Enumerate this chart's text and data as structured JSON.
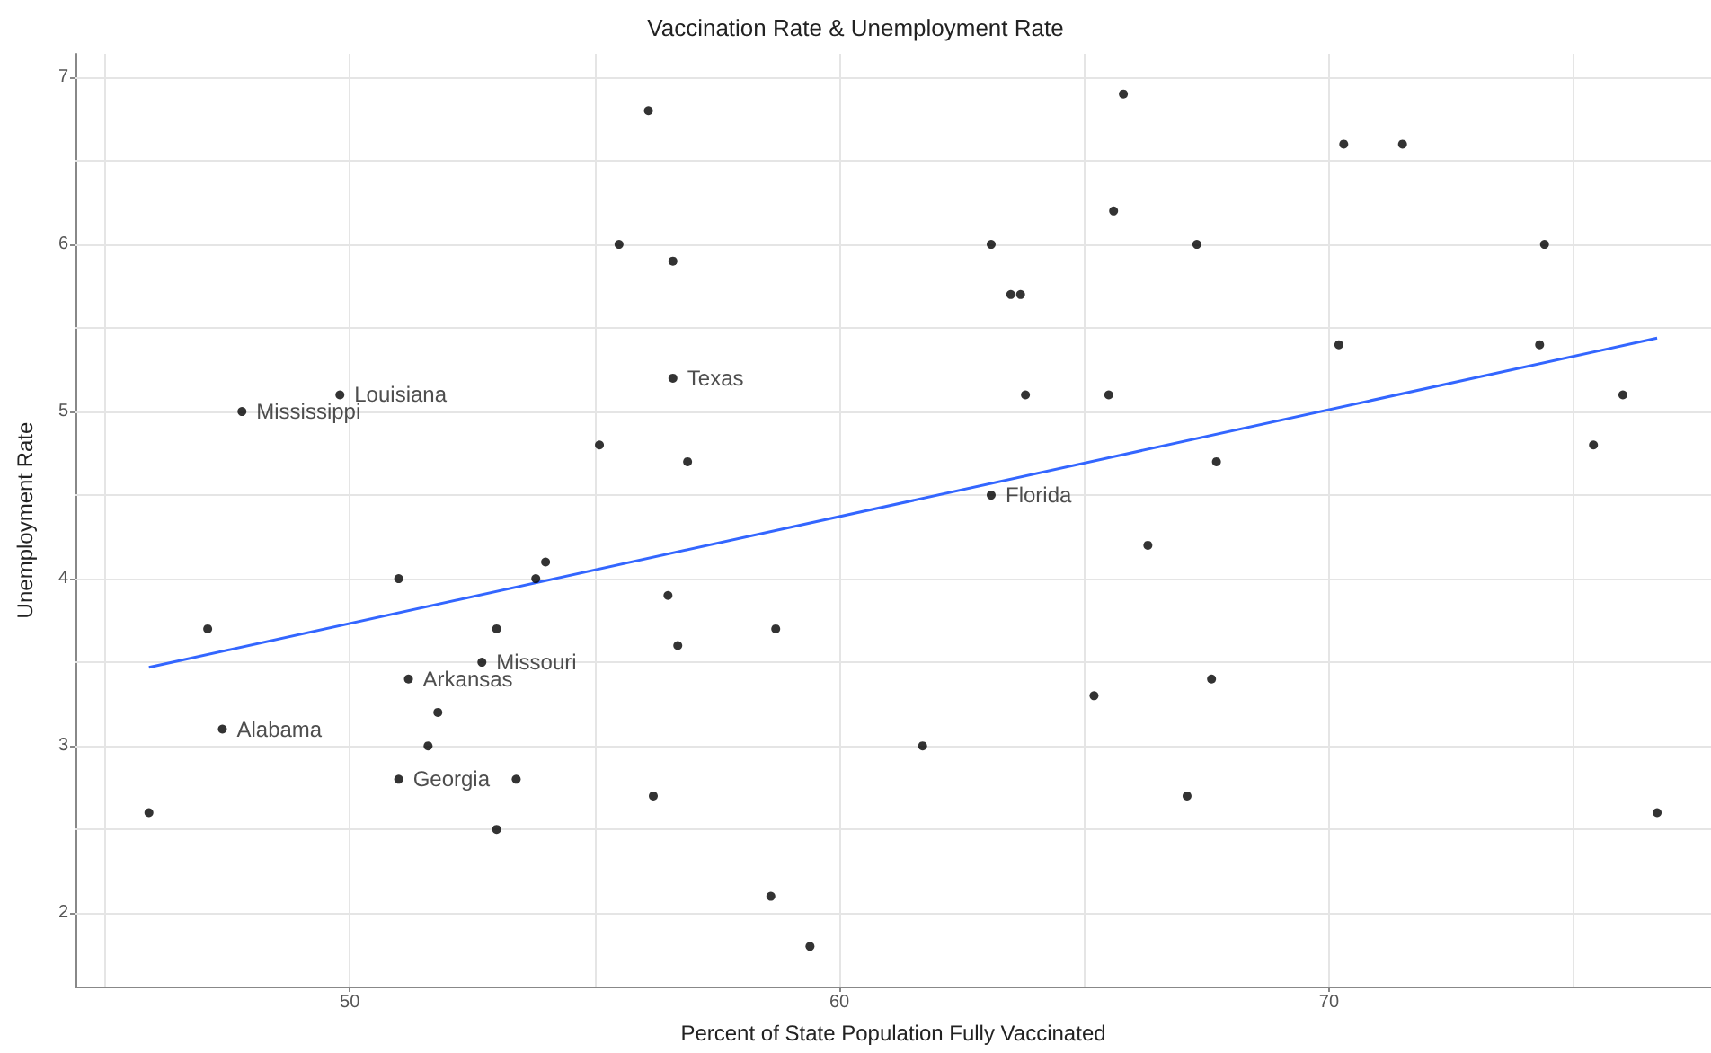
{
  "chart_data": {
    "type": "scatter",
    "title": "Vaccination Rate & Unemployment Rate",
    "xlabel": "Percent of State Population Fully Vaccinated",
    "ylabel": "Unemployment Rate",
    "x": [
      45.9,
      47.1,
      47.4,
      47.8,
      49.8,
      51.0,
      51.2,
      51.0,
      51.8,
      51.6,
      52.7,
      53.0,
      53.0,
      53.4,
      53.8,
      54.0,
      55.1,
      55.5,
      56.1,
      56.2,
      56.5,
      56.6,
      56.6,
      56.7,
      56.9,
      58.7,
      58.6,
      59.4,
      61.7,
      63.1,
      63.1,
      63.5,
      63.7,
      63.8,
      65.2,
      65.5,
      65.6,
      65.8,
      67.3,
      67.7,
      66.3,
      67.6,
      67.1,
      70.3,
      71.5,
      70.2,
      74.3,
      74.4,
      75.4,
      76.0,
      76.7
    ],
    "series": [
      {
        "color": "#000000",
        "values": [
          2.6,
          3.7,
          3.1,
          5.0,
          5.1,
          4.0,
          3.4,
          2.8,
          3.2,
          3.0,
          3.5,
          3.7,
          2.5,
          2.8,
          4.0,
          4.1,
          4.8,
          6.0,
          6.8,
          2.7,
          3.9,
          5.2,
          5.9,
          3.6,
          4.7,
          3.7,
          2.1,
          1.8,
          3.0,
          6.0,
          4.5,
          5.7,
          5.7,
          5.1,
          3.3,
          5.1,
          6.2,
          6.9,
          6.0,
          4.7,
          4.2,
          3.4,
          2.7,
          6.6,
          6.6,
          5.4,
          5.4,
          6.0,
          4.8,
          5.1,
          2.6
        ]
      },
      {
        "type": "line",
        "color": "#3366ff",
        "x": [
          45.9,
          76.7
        ],
        "values": [
          3.47,
          5.44
        ]
      }
    ],
    "annotations": [
      {
        "text": "Alabama",
        "x": 47.4,
        "y": 3.1
      },
      {
        "text": "Mississippi",
        "x": 47.8,
        "y": 5.0
      },
      {
        "text": "Louisiana",
        "x": 49.8,
        "y": 5.1
      },
      {
        "text": "Arkansas",
        "x": 51.2,
        "y": 3.4
      },
      {
        "text": "Georgia",
        "x": 51.0,
        "y": 2.8
      },
      {
        "text": "Missouri",
        "x": 52.7,
        "y": 3.5
      },
      {
        "text": "Texas",
        "x": 56.6,
        "y": 5.2
      },
      {
        "text": "Florida",
        "x": 63.1,
        "y": 4.5
      }
    ],
    "xlim": [
      44.4,
      77.8
    ],
    "xticks": [
      {
        "value": 45,
        "label": null
      },
      50,
      {
        "value": 55,
        "label": null
      },
      60,
      {
        "value": 65,
        "label": null
      },
      70,
      {
        "value": 75,
        "label": null
      }
    ],
    "ylim": [
      1.56,
      7.14
    ],
    "yticks": [
      2,
      {
        "value": 2.5,
        "label": null
      },
      3,
      {
        "value": 3.5,
        "label": null
      },
      4,
      {
        "value": 4.5,
        "label": null
      },
      5,
      {
        "value": 5.5,
        "label": null
      },
      6,
      {
        "value": 6.5,
        "label": null
      },
      7
    ],
    "grid": true
  }
}
